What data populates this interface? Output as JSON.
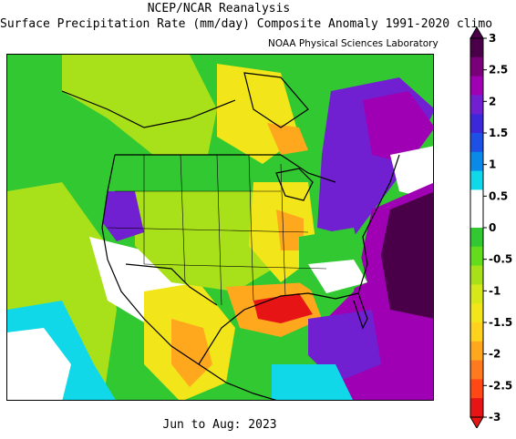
{
  "header": {
    "title_line1": "NCEP/NCAR Reanalysis",
    "title_line2": "Surface Precipitation Rate (mm/day) Composite Anomaly 1991-2020 climo",
    "credit": "NOAA Physical Sciences Laboratory"
  },
  "footer": {
    "period": "Jun to Aug: 2023"
  },
  "colorbar": {
    "ticks": [
      "3",
      "2.5",
      "2",
      "1.5",
      "1",
      "0.5",
      "0",
      "-0.5",
      "-1",
      "-1.5",
      "-2",
      "-2.5",
      "-3"
    ],
    "colors": [
      "#4a0048",
      "#7a007a",
      "#a000b4",
      "#7020d0",
      "#3c28d8",
      "#1e50e6",
      "#0a8ae8",
      "#10d8e8",
      "#ffffff",
      "#ffffff",
      "#32c832",
      "#64dc1e",
      "#a8e01a",
      "#d6e81a",
      "#f2e61a",
      "#ffd21e",
      "#ffa81e",
      "#ff7a1e",
      "#ff4814",
      "#e61414"
    ]
  },
  "map": {
    "region": "North America",
    "colors": {
      "coast": "#000000",
      "deep_purple": "#4a0048",
      "purple": "#a000b4",
      "violet": "#7020d0",
      "blue": "#1e50e6",
      "cyan": "#10d8e8",
      "green": "#32c832",
      "lime": "#a8e01a",
      "yellow": "#f2e61a",
      "orange": "#ffa81e",
      "red": "#e61414"
    }
  }
}
